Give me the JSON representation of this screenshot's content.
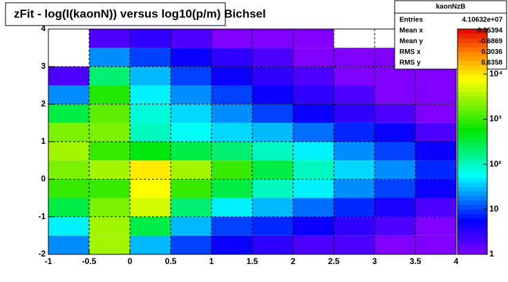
{
  "chart_data": {
    "type": "heatmap",
    "title": "zFit - log(I(kaonN)) versus log10(p/m) Bichsel",
    "x_bins": [
      -1,
      -0.5,
      0,
      0.5,
      1,
      1.5,
      2,
      2.5,
      3,
      3.5,
      4
    ],
    "y_bins": [
      -2,
      -1.5,
      -1,
      -0.5,
      0,
      0.5,
      1,
      1.5,
      2,
      2.5,
      3,
      3.5,
      4
    ],
    "z": [
      [
        20,
        3000,
        30,
        10,
        5,
        3,
        2,
        2,
        1,
        1
      ],
      [
        50,
        3000,
        300,
        30,
        10,
        8,
        5,
        3,
        2,
        1
      ],
      [
        300,
        2000,
        5000,
        200,
        50,
        30,
        15,
        8,
        4,
        2
      ],
      [
        1000,
        1000,
        8000,
        1000,
        300,
        100,
        50,
        20,
        10,
        5
      ],
      [
        2000,
        3000,
        10000,
        3000,
        1000,
        300,
        100,
        40,
        20,
        8
      ],
      [
        3000,
        1000,
        500,
        300,
        200,
        100,
        50,
        20,
        10,
        5
      ],
      [
        2000,
        2000,
        100,
        60,
        40,
        30,
        15,
        8,
        5,
        2
      ],
      [
        300,
        1500,
        80,
        40,
        20,
        10,
        5,
        3,
        2,
        1
      ],
      [
        20,
        800,
        50,
        20,
        10,
        5,
        3,
        2,
        1,
        1
      ],
      [
        2,
        200,
        30,
        10,
        5,
        3,
        2,
        1,
        1,
        1
      ],
      [
        0,
        20,
        10,
        5,
        3,
        2,
        1,
        1,
        1,
        0
      ],
      [
        0,
        2,
        3,
        2,
        1,
        1,
        1,
        0,
        0,
        0
      ]
    ],
    "xlim": [
      -1,
      4
    ],
    "ylim": [
      -2,
      4
    ],
    "xticks": [
      -1,
      -0.5,
      0,
      0.5,
      1,
      1.5,
      2,
      2.5,
      3,
      3.5,
      4
    ],
    "yticks": [
      -2,
      -1,
      0,
      1,
      2,
      3,
      4
    ],
    "zlim": [
      1,
      100000
    ],
    "zlog": true,
    "zticks": [
      1,
      10,
      {
        "value": 100,
        "label": "10²"
      },
      {
        "value": 1000,
        "label": "10³"
      },
      {
        "value": 10000,
        "label": "10⁴"
      }
    ],
    "grid": true
  },
  "stats_box": {
    "title": "kaonNzB",
    "rows": [
      {
        "name": "Entries",
        "value": "4.10632e+07"
      },
      {
        "name": "Mean x",
        "value": "-0.05394"
      },
      {
        "name": "Mean y",
        "value": "-0.6869"
      },
      {
        "name": "RMS x",
        "value": "0.3036"
      },
      {
        "name": "RMS y",
        "value": "0.6358"
      }
    ]
  }
}
